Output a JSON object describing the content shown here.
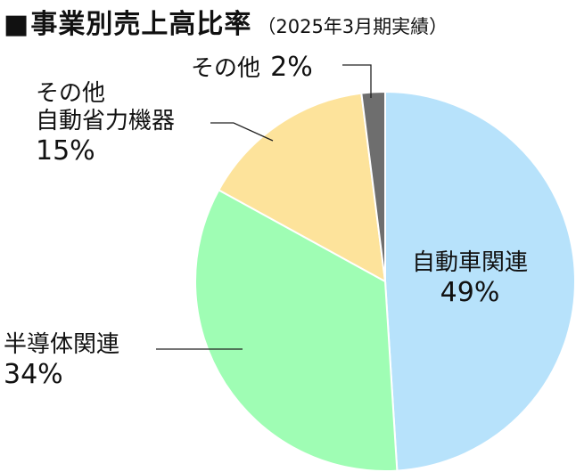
{
  "title": {
    "marker": "■",
    "main": "事業別売上高比率",
    "sub": "（2025年3月期実績）"
  },
  "chart_data": {
    "type": "pie",
    "title": "事業別売上高比率（2025年3月期実績）",
    "slices": [
      {
        "label": "自動車関連",
        "label_lines": [
          "自動車関連"
        ],
        "value": 49,
        "display": "49%",
        "color": "#b7e2fb"
      },
      {
        "label": "半導体関連",
        "label_lines": [
          "半導体関連"
        ],
        "value": 34,
        "display": "34%",
        "color": "#9ffdb4"
      },
      {
        "label": "自動省力機器",
        "label_lines": [
          "その他",
          "自動省力機器"
        ],
        "value": 15,
        "display": "15%",
        "color": "#fde39b"
      },
      {
        "label": "その他",
        "label_lines": [
          "その他"
        ],
        "value": 2,
        "display": "2%",
        "color": "#6e6e6e"
      }
    ],
    "start": "12 o'clock",
    "direction": "clockwise"
  }
}
